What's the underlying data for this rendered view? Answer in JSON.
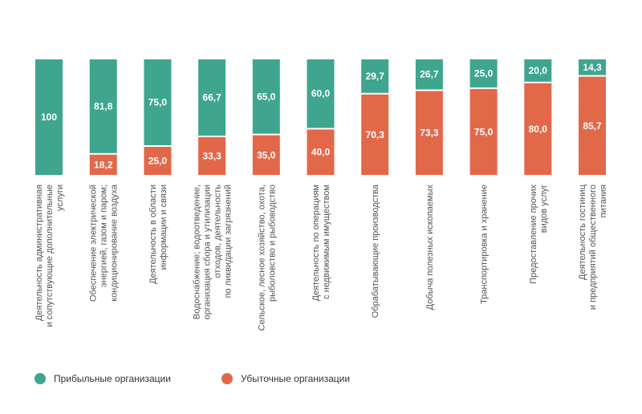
{
  "chart_data": {
    "type": "bar",
    "stacked": true,
    "percent": true,
    "categories": [
      [
        "Деятельность административная",
        "и сопутствующие дополнительные",
        "услуги"
      ],
      [
        "Обеспечение электрической",
        "энергией, газом и паром;",
        "кондиционирование воздуха"
      ],
      [
        "Деятельность в области",
        "информации и связи"
      ],
      [
        "Водоснабжение; водоотведение,",
        "организация сбора и утилизации",
        "отходов, деятельность",
        "по ликвидации загрязнений"
      ],
      [
        "Сельское, лесное хозяйство, охота,",
        "рыболовство и рыбоводство"
      ],
      [
        "Деятельность по операциям",
        "с недвижимым имуществом"
      ],
      [
        "Обрабатывающие производства"
      ],
      [
        "Добыча полезных ископаемых"
      ],
      [
        "Транспортировка и хранение"
      ],
      [
        "Предоставление прочих",
        "видов услуг"
      ],
      [
        "Деятельность гостиниц",
        "и предприятий общественного",
        "питания"
      ]
    ],
    "series": [
      {
        "name": "Прибыльные организации",
        "color": "#3fa58e",
        "values": [
          100,
          81.8,
          75.0,
          66.7,
          65.0,
          60.0,
          29.7,
          26.7,
          25.0,
          20.0,
          14.3
        ],
        "labels": [
          "100",
          "81,8",
          "75,0",
          "66,7",
          "65,0",
          "60,0",
          "29,7",
          "26,7",
          "25,0",
          "20,0",
          "14,3"
        ]
      },
      {
        "name": "Убыточные организации",
        "color": "#e2684a",
        "values": [
          0,
          18.2,
          25.0,
          33.3,
          35.0,
          40.0,
          70.3,
          73.3,
          75.0,
          80.0,
          85.7
        ],
        "labels": [
          "",
          "18,2",
          "25,0",
          "33,3",
          "35,0",
          "40,0",
          "70,3",
          "73,3",
          "75,0",
          "80,0",
          "85,7"
        ]
      }
    ],
    "ylim": [
      0,
      100
    ],
    "grid": false,
    "legend": "bottom-left"
  }
}
